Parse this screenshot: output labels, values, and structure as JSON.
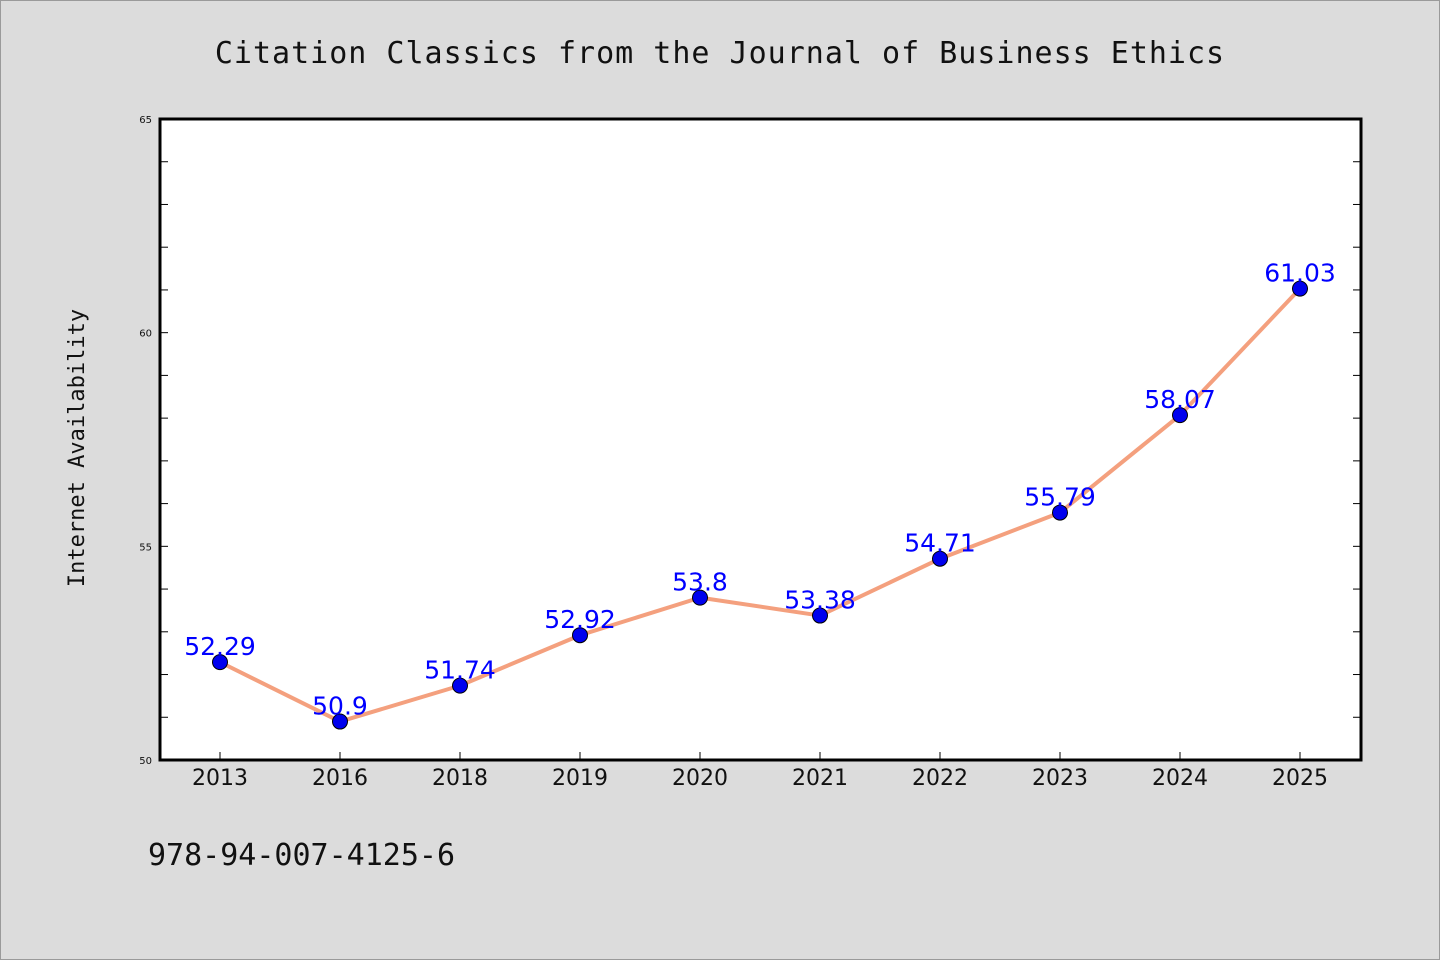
{
  "chart_data": {
    "type": "line",
    "title": "Citation Classics from the Journal of Business Ethics",
    "xlabel": "",
    "ylabel": "Internet Availability",
    "categories": [
      "2013",
      "2016",
      "2018",
      "2019",
      "2020",
      "2021",
      "2022",
      "2023",
      "2024",
      "2025"
    ],
    "series": [
      {
        "values": [
          52.29,
          50.9,
          51.74,
          52.92,
          53.8,
          53.38,
          54.71,
          55.79,
          58.07,
          61.03
        ],
        "labels": [
          "52.29",
          "50.9",
          "51.74",
          "52.92",
          "53.8",
          "53.38",
          "54.71",
          "55.79",
          "58.07",
          "61.03"
        ]
      }
    ],
    "ylim": [
      50,
      65
    ],
    "yticks": [
      50,
      55,
      60,
      65
    ],
    "ytick_labels": [
      "50",
      "55",
      "60",
      "65"
    ],
    "yminor_step": 1,
    "grid": false,
    "legend": "none",
    "colors": {
      "line": "#f4a07e",
      "marker": "#0000ee",
      "marker_edge": "#000000",
      "data_label": "#0000ff",
      "background": "#dcdcdc",
      "plot_area": "#ffffff"
    }
  },
  "footer": {
    "text": "978-94-007-4125-6"
  }
}
